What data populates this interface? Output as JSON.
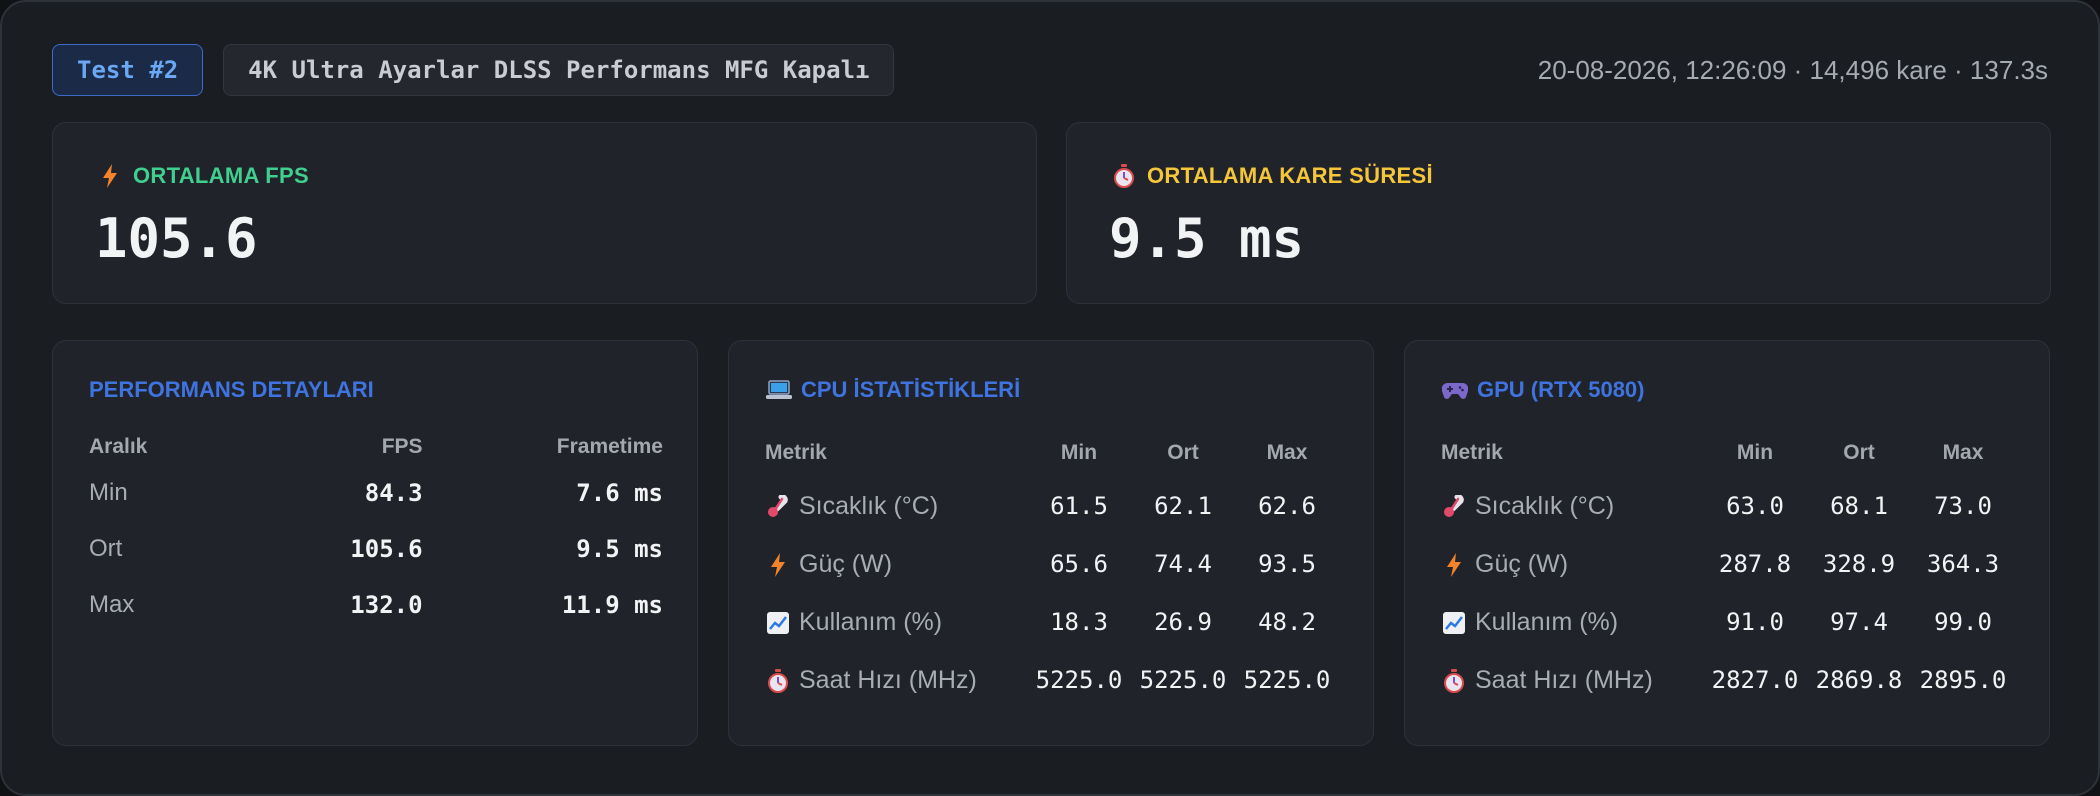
{
  "header": {
    "badge": "Test #2",
    "test_name": "4K Ultra Ayarlar DLSS Performans MFG Kapalı",
    "meta": "20-08-2026, 12:26:09 · 14,496 kare · 137.3s"
  },
  "summary": {
    "fps": {
      "title": "ORTALAMA FPS",
      "value": "105.6",
      "icon": "bolt-icon",
      "color": "#3fcf8e"
    },
    "frametime": {
      "title": "ORTALAMA KARE SÜRESİ",
      "value": "9.5 ms",
      "icon": "stopwatch-icon",
      "color": "#f5c63a"
    }
  },
  "perf": {
    "title": "PERFORMANS DETAYLARI",
    "headers": [
      "Aralık",
      "FPS",
      "Frametime"
    ],
    "rows": [
      {
        "label": "Min",
        "fps": "84.3",
        "frametime": "7.6 ms"
      },
      {
        "label": "Ort",
        "fps": "105.6",
        "frametime": "9.5 ms"
      },
      {
        "label": "Max",
        "fps": "132.0",
        "frametime": "11.9 ms"
      }
    ]
  },
  "cpu": {
    "title": "CPU İSTATİSTİKLERİ",
    "icon": "laptop-icon",
    "headers": [
      "Metrik",
      "Min",
      "Ort",
      "Max"
    ],
    "rows": [
      {
        "icon": "thermometer-icon",
        "label": "Sıcaklık (°C)",
        "min": "61.5",
        "avg": "62.1",
        "max": "62.6"
      },
      {
        "icon": "bolt-icon",
        "label": "Güç (W)",
        "min": "65.6",
        "avg": "74.4",
        "max": "93.5"
      },
      {
        "icon": "chart-icon",
        "label": "Kullanım (%)",
        "min": "18.3",
        "avg": "26.9",
        "max": "48.2"
      },
      {
        "icon": "stopwatch-icon",
        "label": "Saat Hızı (MHz)",
        "min": "5225.0",
        "avg": "5225.0",
        "max": "5225.0"
      }
    ]
  },
  "gpu": {
    "title": "GPU (RTX 5080)",
    "icon": "gamepad-icon",
    "headers": [
      "Metrik",
      "Min",
      "Ort",
      "Max"
    ],
    "rows": [
      {
        "icon": "thermometer-icon",
        "label": "Sıcaklık (°C)",
        "min": "63.0",
        "avg": "68.1",
        "max": "73.0"
      },
      {
        "icon": "bolt-icon",
        "label": "Güç (W)",
        "min": "287.8",
        "avg": "328.9",
        "max": "364.3"
      },
      {
        "icon": "chart-icon",
        "label": "Kullanım (%)",
        "min": "91.0",
        "avg": "97.4",
        "max": "99.0"
      },
      {
        "icon": "stopwatch-icon",
        "label": "Saat Hızı (MHz)",
        "min": "2827.0",
        "avg": "2869.8",
        "max": "2895.0"
      }
    ]
  },
  "colors": {
    "accent_blue": "#3f74e0",
    "accent_green": "#3fcf8e",
    "accent_yellow": "#f5c63a",
    "background": "#1a1d22",
    "card": "#20232a"
  }
}
